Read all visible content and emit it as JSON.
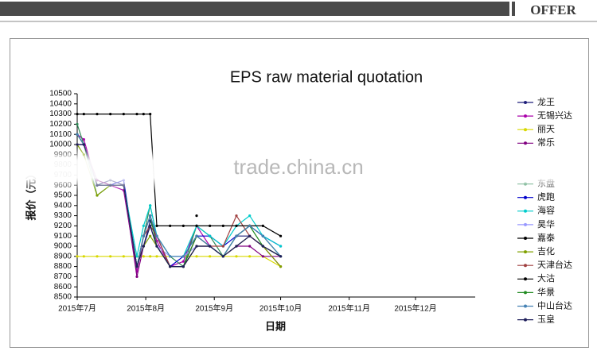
{
  "header": {
    "title": "OFFER"
  },
  "watermark": "trade.china.cn",
  "chart_data": {
    "type": "line",
    "title": "EPS raw material quotation",
    "xlabel": "日期",
    "ylabel": "报价（元）",
    "xlim": [
      0,
      180
    ],
    "xticks": [
      {
        "value": 0,
        "label": "2015年7月"
      },
      {
        "value": 31,
        "label": "2015年8月"
      },
      {
        "value": 62,
        "label": "2015年9月"
      },
      {
        "value": 92,
        "label": "2015年10月"
      },
      {
        "value": 123,
        "label": "2015年11月"
      },
      {
        "value": 153,
        "label": "2015年12月"
      }
    ],
    "ylim": [
      8500,
      10500
    ],
    "yticks": [
      8500,
      8600,
      8700,
      8800,
      8900,
      9000,
      9100,
      9200,
      9300,
      9400,
      9500,
      9600,
      9700,
      9800,
      9900,
      10000,
      10100,
      10200,
      10300,
      10400,
      10500
    ],
    "grid": false,
    "legend": "right",
    "x": [
      0,
      3,
      9,
      15,
      21,
      27,
      30,
      33,
      36,
      42,
      48,
      54,
      60,
      66,
      72,
      78,
      84,
      92
    ],
    "series": [
      {
        "name": "龙王",
        "color": "#1f1f7a",
        "values": [
          10100,
          10000,
          9600,
          9650,
          9600,
          8800,
          9000,
          9250,
          9100,
          8800,
          8800,
          9100,
          9000,
          8900,
          9100,
          9100,
          9000,
          8900
        ]
      },
      {
        "name": "无锡兴达",
        "color": "#aa00aa",
        "values": [
          10100,
          10050,
          9600,
          9600,
          9550,
          8750,
          9100,
          9300,
          9050,
          8800,
          8850,
          9200,
          9000,
          8900,
          9000,
          9100,
          9000,
          8800
        ]
      },
      {
        "name": "丽天",
        "color": "#d8d800",
        "values": [
          8900,
          8900,
          8900,
          8900,
          8900,
          8900,
          8900,
          8900,
          8900,
          8900,
          8900,
          8900,
          8900,
          8900,
          8900,
          8900,
          8900,
          8800
        ]
      },
      {
        "name": "常乐",
        "color": "#800080",
        "values": [
          10000,
          10000,
          9650,
          9600,
          9600,
          8700,
          9000,
          9200,
          9000,
          8800,
          8800,
          9000,
          9000,
          8900,
          9000,
          9000,
          8900,
          8900
        ]
      },
      {
        "name": "东盘",
        "color": "#2e8b57",
        "values": [
          10200,
          10000,
          9500,
          9600,
          9600,
          8800,
          9100,
          9400,
          9100,
          8900,
          8800,
          9200,
          9100,
          8900,
          9100,
          9200,
          9100,
          8900
        ]
      },
      {
        "name": "虎跑",
        "color": "#0000cc",
        "values": [
          10100,
          10000,
          9600,
          9600,
          9650,
          8800,
          9100,
          9300,
          9100,
          8800,
          8900,
          9100,
          9100,
          9000,
          9100,
          9200,
          9100,
          9000
        ]
      },
      {
        "name": "海容",
        "color": "#00cccc",
        "values": [
          10100,
          10000,
          9600,
          9600,
          9600,
          8900,
          9200,
          9400,
          9100,
          8900,
          8900,
          9200,
          9100,
          9000,
          9200,
          9300,
          9100,
          9000
        ]
      },
      {
        "name": "昊华",
        "color": "#9999ff",
        "values": [
          10000,
          10000,
          9600,
          9600,
          9600,
          8800,
          9000,
          9200,
          9000,
          8900,
          8900,
          9000,
          9000,
          8900,
          9000,
          9100,
          9000,
          8900
        ]
      },
      {
        "name": "嘉泰",
        "color": "#000000",
        "values": [
          null,
          null,
          null,
          null,
          null,
          null,
          null,
          null,
          null,
          null,
          null,
          9300,
          null,
          null,
          null,
          null,
          null,
          null
        ]
      },
      {
        "name": "吉化",
        "color": "#80a000",
        "values": [
          10000,
          9900,
          9500,
          9600,
          9600,
          8800,
          9000,
          9100,
          9000,
          8800,
          8800,
          9000,
          9000,
          8900,
          9000,
          9100,
          9000,
          8800
        ]
      },
      {
        "name": "天津台达",
        "color": "#a04040",
        "values": [
          10100,
          10000,
          9600,
          9600,
          9600,
          8800,
          9100,
          9200,
          9100,
          8800,
          8800,
          9100,
          9000,
          9000,
          9300,
          9100,
          9000,
          8900
        ]
      },
      {
        "name": "大沽",
        "color": "#000000",
        "values": [
          10300,
          10300,
          10300,
          10300,
          10300,
          10300,
          10300,
          10300,
          9200,
          9200,
          9200,
          9200,
          9200,
          9200,
          9200,
          9200,
          9200,
          9100
        ]
      },
      {
        "name": "华景",
        "color": "#228b22",
        "values": [
          10100,
          10000,
          9600,
          9600,
          9600,
          8800,
          9100,
          9300,
          9000,
          8800,
          8800,
          9100,
          9000,
          8900,
          9100,
          9200,
          9000,
          8900
        ]
      },
      {
        "name": "中山台达",
        "color": "#4682b4",
        "values": [
          10100,
          10000,
          9600,
          9600,
          9600,
          8800,
          9100,
          9300,
          9100,
          8900,
          8900,
          9100,
          9000,
          8900,
          9100,
          9200,
          9100,
          8900
        ]
      },
      {
        "name": "玉皇",
        "color": "#1e1e5a",
        "values": [
          10000,
          10000,
          9600,
          9600,
          9600,
          8800,
          9000,
          9200,
          9000,
          8800,
          8800,
          9000,
          9000,
          8900,
          9000,
          9100,
          9000,
          8900
        ]
      }
    ]
  }
}
